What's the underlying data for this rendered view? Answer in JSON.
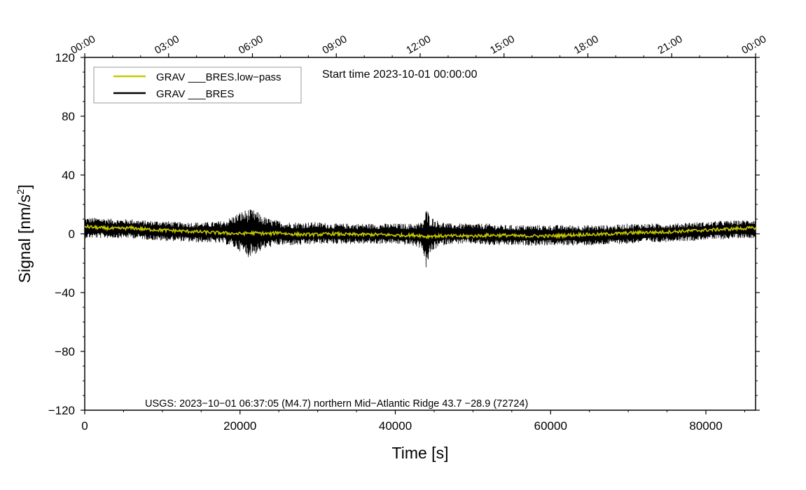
{
  "chart_data": {
    "type": "line",
    "title": "Start time 2023-10-01 00:00:00",
    "xlabel": "Time [s]",
    "ylabel": "Signal [nm/s",
    "ylabel_sup": "2",
    "ylabel_close": "]",
    "xlim": [
      0,
      86400
    ],
    "ylim": [
      -120,
      120
    ],
    "x_ticks": [
      0,
      20000,
      40000,
      60000,
      80000
    ],
    "x_tick_labels": [
      "0",
      "20000",
      "40000",
      "60000",
      "80000"
    ],
    "y_ticks": [
      120,
      80,
      40,
      0,
      -40,
      -80,
      -120
    ],
    "y_tick_labels": [
      "120",
      "80",
      "40",
      "0",
      "−40",
      "−80",
      "−120"
    ],
    "top_axis_ticks_s": [
      0,
      10800,
      21600,
      32400,
      43200,
      54000,
      64800,
      75600,
      86400
    ],
    "top_axis_labels": [
      "00:00",
      "03:00",
      "06:00",
      "09:00",
      "12:00",
      "15:00",
      "18:00",
      "21:00",
      "00:00"
    ],
    "legend_position": "top-left",
    "annotation": "USGS: 2023−10−01 06:37:05 (M4.7) northern Mid−Atlantic Ridge 43.7 −28.9 (72724)",
    "series": [
      {
        "name": "GRAV ___BRES.low−pass",
        "color": "#c8c800",
        "x": [
          0,
          2000,
          4000,
          6000,
          8000,
          10000,
          12000,
          14000,
          16000,
          18000,
          20000,
          21000,
          22000,
          24000,
          25000,
          26000,
          28000,
          30000,
          32000,
          34000,
          36000,
          38000,
          40000,
          42000,
          43000,
          44000,
          44500,
          45000,
          46000,
          48000,
          50000,
          52000,
          54000,
          56000,
          58000,
          60000,
          62000,
          64000,
          66000,
          68000,
          70000,
          72000,
          74000,
          76000,
          78000,
          80000,
          82000,
          84000,
          86400
        ],
        "values": [
          5,
          4,
          3.5,
          4,
          3,
          2.5,
          2,
          1.5,
          1,
          0.5,
          0,
          0.5,
          0.5,
          0,
          1,
          0,
          -0.5,
          -0.5,
          0,
          -0.5,
          -0.5,
          -0.5,
          -1,
          -1,
          -1,
          -2,
          -1.5,
          -1.5,
          -1.5,
          -1.5,
          -1.5,
          -1,
          -1,
          -1.5,
          -1.5,
          -1.5,
          -1,
          -0.5,
          -0.5,
          0,
          0.5,
          1,
          1,
          1.5,
          2,
          2.5,
          3,
          3.5,
          4
        ]
      },
      {
        "name": "GRAV ___BRES",
        "color": "#000000",
        "x": [
          0,
          2000,
          4000,
          6000,
          8000,
          10000,
          12000,
          14000,
          16000,
          18000,
          19000,
          20000,
          21000,
          22000,
          23000,
          24000,
          25000,
          26000,
          28000,
          30000,
          32000,
          34000,
          36000,
          38000,
          40000,
          42000,
          43500,
          44000,
          44500,
          45500,
          47000,
          50000,
          52000,
          54000,
          56000,
          58000,
          60000,
          62000,
          64000,
          66000,
          68000,
          70000,
          72000,
          74000,
          76000,
          78000,
          80000,
          82000,
          84000,
          86400
        ],
        "upper": [
          11,
          11,
          10,
          10,
          9,
          9,
          8,
          8,
          8,
          9,
          12,
          15,
          17,
          16,
          12,
          10,
          9,
          8,
          8,
          8,
          7,
          7,
          7,
          7,
          7,
          7,
          8,
          18,
          12,
          9,
          7,
          7,
          7,
          6,
          6,
          6,
          6,
          6,
          6,
          6,
          6,
          7,
          7,
          7,
          7,
          8,
          8,
          9,
          9,
          10
        ],
        "lower": [
          -3,
          -3,
          -3,
          -3,
          -4,
          -5,
          -5,
          -6,
          -6,
          -7,
          -9,
          -12,
          -16,
          -14,
          -11,
          -9,
          -8,
          -8,
          -8,
          -7,
          -7,
          -7,
          -7,
          -7,
          -7,
          -8,
          -10,
          -25,
          -14,
          -9,
          -7,
          -7,
          -8,
          -8,
          -8,
          -8,
          -8,
          -8,
          -8,
          -8,
          -7,
          -7,
          -6,
          -6,
          -5,
          -5,
          -4,
          -4,
          -3,
          -3
        ]
      }
    ]
  }
}
